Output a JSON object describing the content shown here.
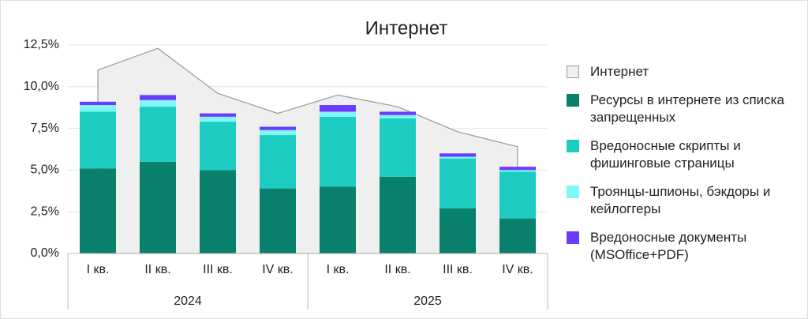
{
  "chart_data": {
    "type": "bar",
    "title": "Интернет",
    "categories": [
      "I кв.",
      "II кв.",
      "III кв.",
      "IV кв.",
      "I кв.",
      "II кв.",
      "III кв.",
      "IV кв."
    ],
    "groups": [
      "2024",
      "2025"
    ],
    "area": {
      "name": "Интернет",
      "color": "#efefef",
      "values": [
        11.0,
        12.3,
        9.6,
        8.4,
        9.5,
        8.8,
        7.3,
        6.4
      ]
    },
    "series": [
      {
        "name": "Ресурсы в интернете из списка запрещенных",
        "color": "#08806b",
        "values": [
          5.1,
          5.5,
          5.0,
          3.9,
          4.0,
          4.6,
          2.7,
          2.1
        ]
      },
      {
        "name": "Вредоносные скрипты и фишинговые страницы",
        "color": "#1cccc0",
        "values": [
          3.4,
          3.3,
          2.9,
          3.2,
          4.2,
          3.5,
          3.0,
          2.8
        ]
      },
      {
        "name": "Троянцы-шпионы, бэкдоры и кейлоггеры",
        "color": "#80f7f7",
        "values": [
          0.4,
          0.4,
          0.3,
          0.3,
          0.3,
          0.2,
          0.1,
          0.1
        ]
      },
      {
        "name": "Вредоносные документы (MSOffice+PDF)",
        "color": "#6b3bff",
        "values": [
          0.2,
          0.3,
          0.2,
          0.2,
          0.4,
          0.2,
          0.2,
          0.2
        ]
      }
    ],
    "ylim": [
      0,
      12.5
    ],
    "yticks": [
      {
        "value": 0,
        "label": "0,0%"
      },
      {
        "value": 2.5,
        "label": "2,5%"
      },
      {
        "value": 5,
        "label": "5,0%"
      },
      {
        "value": 7.5,
        "label": "7,5%"
      },
      {
        "value": 10,
        "label": "10,0%"
      },
      {
        "value": 12.5,
        "label": "12,5%"
      }
    ],
    "grid": true,
    "legend": "right"
  }
}
